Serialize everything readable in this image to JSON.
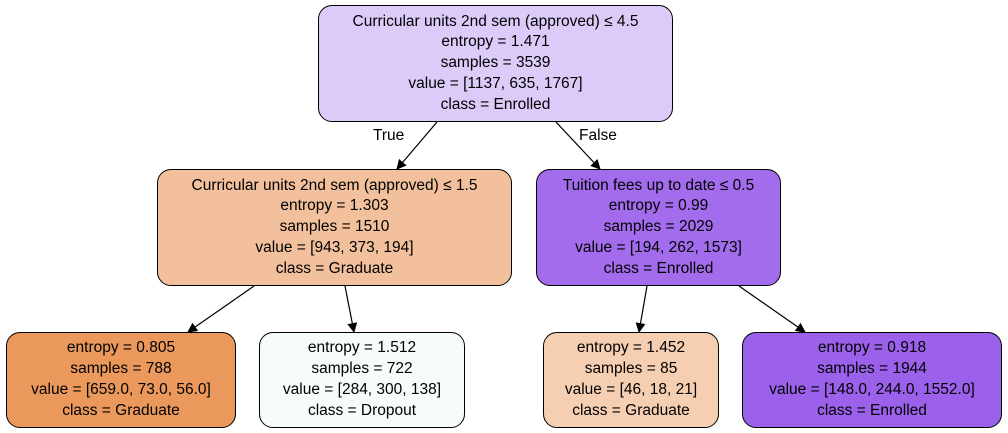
{
  "tree": {
    "nodes": [
      {
        "id": "root",
        "color": "#dccbf8",
        "lines": [
          "Curricular units 2nd sem (approved) ≤ 4.5",
          "entropy = 1.471",
          "samples = 3539",
          "value = [1137, 635, 1767]",
          "class = Enrolled"
        ]
      },
      {
        "id": "left",
        "color": "#f2c09c",
        "lines": [
          "Curricular units 2nd sem (approved) ≤ 1.5",
          "entropy = 1.303",
          "samples = 1510",
          "value = [943, 373, 194]",
          "class = Graduate"
        ]
      },
      {
        "id": "right",
        "color": "#a26cec",
        "lines": [
          "Tuition fees up to date ≤ 0.5",
          "entropy = 0.99",
          "samples = 2029",
          "value = [194, 262, 1573]",
          "class = Enrolled"
        ]
      },
      {
        "id": "ll",
        "color": "#eb985c",
        "lines": [
          "entropy = 0.805",
          "samples = 788",
          "value = [659.0, 73.0, 56.0]",
          "class = Graduate"
        ]
      },
      {
        "id": "lr",
        "color": "#f6fdf9",
        "lines": [
          "entropy = 1.512",
          "samples = 722",
          "value = [284, 300, 138]",
          "class = Dropout"
        ]
      },
      {
        "id": "rl",
        "color": "#f6cfb2",
        "lines": [
          "entropy = 1.452",
          "samples = 85",
          "value = [46, 18, 21]",
          "class = Graduate"
        ]
      },
      {
        "id": "rr",
        "color": "#9b61ea",
        "lines": [
          "entropy = 0.918",
          "samples = 1944",
          "value = [148.0, 244.0, 1552.0]",
          "class = Enrolled"
        ]
      }
    ],
    "edge_labels": {
      "true_label": "True",
      "false_label": "False"
    }
  }
}
